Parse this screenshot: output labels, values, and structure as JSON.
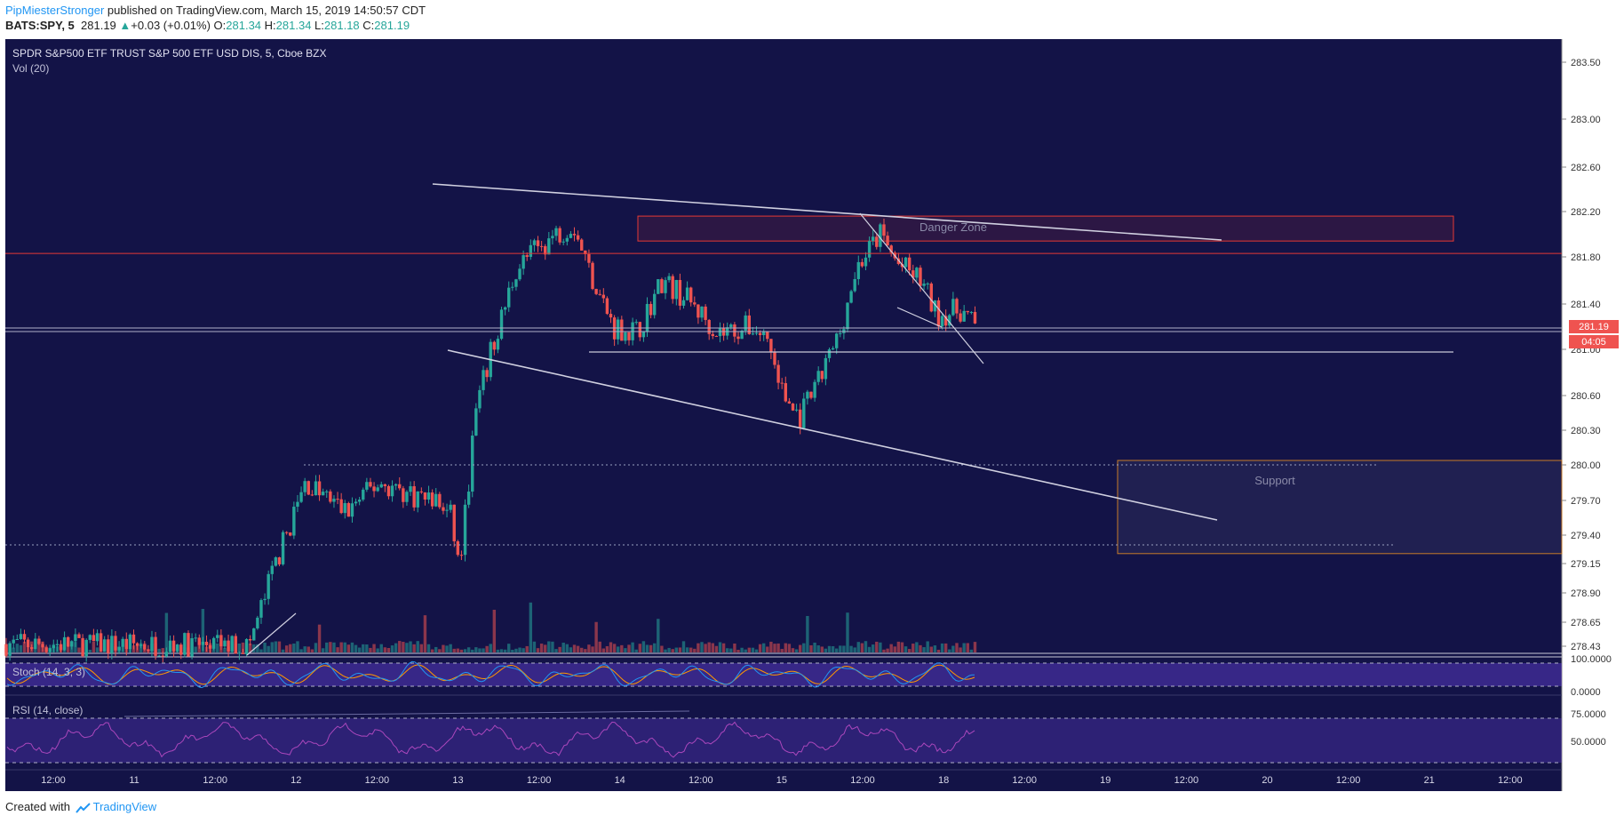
{
  "header": {
    "author": "PipMiesterStronger",
    "published_text": "published on TradingView.com, March 15, 2019 14:50:57 CDT",
    "symbol": "BATS:SPY, 5",
    "last": "281.19",
    "change": "+0.03 (+0.01%)",
    "open_label": "O:",
    "open": "281.34",
    "high_label": "H:",
    "high": "281.34",
    "low_label": "L:",
    "low": "281.18",
    "close_label": "C:",
    "close": "281.19"
  },
  "footer": {
    "created_with": "Created with",
    "brand": "TradingView"
  },
  "colors": {
    "background": "#131347",
    "up": "#26a69a",
    "down": "#ef5350",
    "stoch_k": "#2196f3",
    "stoch_d": "#ff9800",
    "rsi": "#ab47bc",
    "zone_red": "#e53935",
    "zone_orange": "#c77b28"
  },
  "chart_data": {
    "type": "candlestick",
    "title": "SPDR S&P500 ETF TRUST S&P 500 ETF USD DIS, 5, Cboe BZX",
    "volume_label": "Vol (20)",
    "price_axis": {
      "range": [
        278.3,
        283.7
      ],
      "ticks": [
        "283.50",
        "283.00",
        "282.60",
        "282.20",
        "281.80",
        "281.40",
        "281.00",
        "280.60",
        "280.30",
        "280.00",
        "279.70",
        "279.40",
        "279.15",
        "278.90",
        "278.65",
        "278.43"
      ]
    },
    "last_price_label": "281.19",
    "countdown_label": "04:05",
    "x_ticks": [
      "12:00",
      "11",
      "12:00",
      "12",
      "12:00",
      "13",
      "12:00",
      "14",
      "12:00",
      "15",
      "12:00",
      "18",
      "12:00",
      "19",
      "12:00",
      "20",
      "12:00",
      "21",
      "12:00"
    ],
    "price_path": [
      {
        "t": 0,
        "p": 278.45
      },
      {
        "t": 3.0,
        "p": 278.44
      },
      {
        "t": 3.3,
        "p": 279.1
      },
      {
        "t": 3.7,
        "p": 279.85
      },
      {
        "t": 4.2,
        "p": 279.6
      },
      {
        "t": 4.6,
        "p": 279.85
      },
      {
        "t": 5.0,
        "p": 279.75
      },
      {
        "t": 5.3,
        "p": 279.7
      },
      {
        "t": 5.5,
        "p": 279.55
      },
      {
        "t": 5.6,
        "p": 279.1
      },
      {
        "t": 5.8,
        "p": 280.45
      },
      {
        "t": 6.0,
        "p": 281.0
      },
      {
        "t": 6.3,
        "p": 281.7
      },
      {
        "t": 6.6,
        "p": 281.9
      },
      {
        "t": 7.0,
        "p": 282.1
      },
      {
        "t": 7.2,
        "p": 281.7
      },
      {
        "t": 7.5,
        "p": 281.2
      },
      {
        "t": 7.8,
        "p": 281.15
      },
      {
        "t": 8.1,
        "p": 281.6
      },
      {
        "t": 8.4,
        "p": 281.45
      },
      {
        "t": 8.8,
        "p": 281.15
      },
      {
        "t": 9.2,
        "p": 281.2
      },
      {
        "t": 9.4,
        "p": 281.1
      },
      {
        "t": 9.6,
        "p": 280.6
      },
      {
        "t": 9.8,
        "p": 280.4
      },
      {
        "t": 10.0,
        "p": 280.65
      },
      {
        "t": 10.3,
        "p": 281.15
      },
      {
        "t": 10.5,
        "p": 281.7
      },
      {
        "t": 10.8,
        "p": 282.0
      },
      {
        "t": 11.0,
        "p": 281.75
      },
      {
        "t": 11.3,
        "p": 281.6
      },
      {
        "t": 11.5,
        "p": 281.3
      },
      {
        "t": 11.8,
        "p": 281.35
      },
      {
        "t": 11.98,
        "p": 281.19
      }
    ],
    "annotations": {
      "danger_zone": {
        "label": "Danger Zone",
        "price_top": 282.16,
        "price_bottom": 281.94
      },
      "support_zone": {
        "label": "Support",
        "price_top": 280.0,
        "price_bottom": 279.3
      },
      "resistance_line_price": 281.83,
      "horizontal_support_price": 281.05
    },
    "stoch": {
      "label": "Stoch (14, 3, 3)",
      "ticks": [
        "100.0000",
        "0.0000"
      ],
      "upper_band": 80,
      "lower_band": 20
    },
    "rsi": {
      "label": "RSI (14, close)",
      "ticks": [
        "75.0000",
        "50.0000"
      ],
      "upper_band": 70,
      "lower_band": 30
    }
  }
}
